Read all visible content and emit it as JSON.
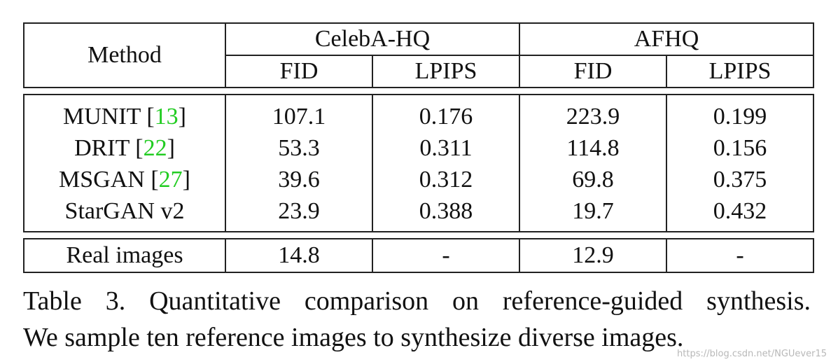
{
  "table": {
    "header": {
      "method": "Method",
      "groups": [
        "CelebA-HQ",
        "AFHQ"
      ],
      "metrics": [
        "FID",
        "LPIPS",
        "FID",
        "LPIPS"
      ]
    },
    "rows": [
      {
        "method": "MUNIT",
        "ref": "13",
        "values": [
          "107.1",
          "0.176",
          "223.9",
          "0.199"
        ],
        "bold": false
      },
      {
        "method": "DRIT",
        "ref": "22",
        "values": [
          "53.3",
          "0.311",
          "114.8",
          "0.156"
        ],
        "bold": false
      },
      {
        "method": "MSGAN",
        "ref": "27",
        "values": [
          "39.6",
          "0.312",
          "69.8",
          "0.375"
        ],
        "bold": false
      },
      {
        "method": "StarGAN v2",
        "ref": "",
        "values": [
          "23.9",
          "0.388",
          "19.7",
          "0.432"
        ],
        "bold": true
      }
    ],
    "real": {
      "method": "Real images",
      "values": [
        "14.8",
        "-",
        "12.9",
        "-"
      ]
    }
  },
  "caption": {
    "line1": "Table 3. Quantitative comparison on reference-guided synthesis.",
    "line2": "We sample ten reference images to synthesize diverse images."
  },
  "watermark": "https://blog.csdn.net/NGUever15"
}
